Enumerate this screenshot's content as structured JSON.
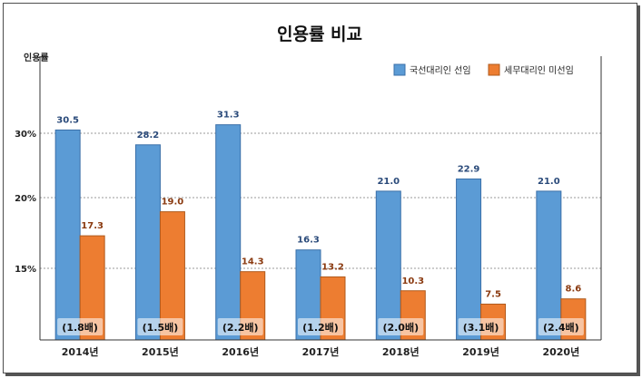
{
  "chart_data": {
    "type": "bar",
    "title": "인용률 비교",
    "ylabel": "인용률",
    "y_ticks": [
      {
        "label": "15%",
        "value": 15
      },
      {
        "label": "20%",
        "value": 20
      },
      {
        "label": "30%",
        "value": 30
      }
    ],
    "grid": true,
    "legend_position": "top-right",
    "categories": [
      "2014년",
      "2015년",
      "2016년",
      "2017년",
      "2018년",
      "2019년",
      "2020년"
    ],
    "series": [
      {
        "name": "국선대리인 선임",
        "color": "#5b9bd5",
        "values": [
          30.5,
          28.2,
          31.3,
          16.3,
          21.0,
          22.9,
          21.0
        ],
        "labels": [
          "30.5",
          "28.2",
          "31.3",
          "16.3",
          "21.0",
          "22.9",
          "21.0"
        ]
      },
      {
        "name": "세무대리인 미선임",
        "color": "#ed7d31",
        "values": [
          17.3,
          19.0,
          14.3,
          13.2,
          10.3,
          7.5,
          8.6
        ],
        "labels": [
          "17.3",
          "19.0",
          "14.3",
          "13.2",
          "10.3",
          "7.5",
          "8.6"
        ]
      }
    ],
    "ratios": [
      "(1.8배)",
      "(1.5배)",
      "(2.2배)",
      "(1.2배)",
      "(2.0배)",
      "(3.1배)",
      "(2.4배)"
    ]
  }
}
